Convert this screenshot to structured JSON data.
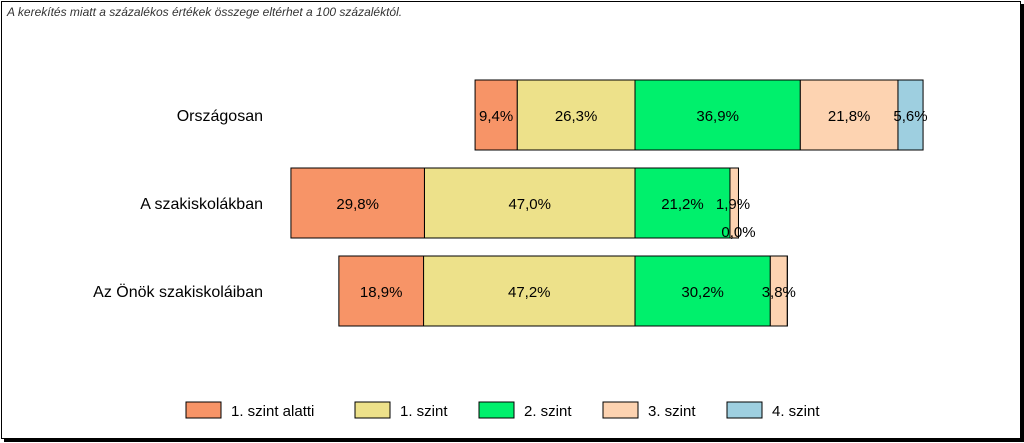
{
  "note": "A kerekítés miatt a  százalékos értékek összege eltérhet a 100 százaléktól.",
  "chart_data": {
    "type": "bar",
    "orientation": "horizontal",
    "stacked": "diverging",
    "categories": [
      "Országosan",
      "A szakiskolákban",
      "Az Önök szakiskoláiban"
    ],
    "series": [
      {
        "name": "1. szint alatti",
        "values": [
          9.4,
          29.8,
          18.9
        ],
        "labels": [
          "9,4%",
          "29,8%",
          "18,9%"
        ],
        "color": "#f79467"
      },
      {
        "name": "1. szint",
        "values": [
          26.3,
          47.0,
          47.2
        ],
        "labels": [
          "26,3%",
          "47,0%",
          "47,2%"
        ],
        "color": "#ede18a"
      },
      {
        "name": "2. szint",
        "values": [
          36.9,
          21.2,
          30.2
        ],
        "labels": [
          "36,9%",
          "21,2%",
          "30,2%"
        ],
        "color": "#00f06c"
      },
      {
        "name": "3. szint",
        "values": [
          21.8,
          1.9,
          3.8
        ],
        "labels": [
          "21,8%",
          "1,9%",
          "3,8%"
        ],
        "color": "#fdd3b1"
      },
      {
        "name": "4. szint",
        "values": [
          5.6,
          0.0,
          0.0
        ],
        "labels": [
          "5,6%",
          "0,0%",
          ""
        ],
        "color": "#9ecfe0"
      }
    ],
    "legend_position": "bottom",
    "grid": false
  }
}
